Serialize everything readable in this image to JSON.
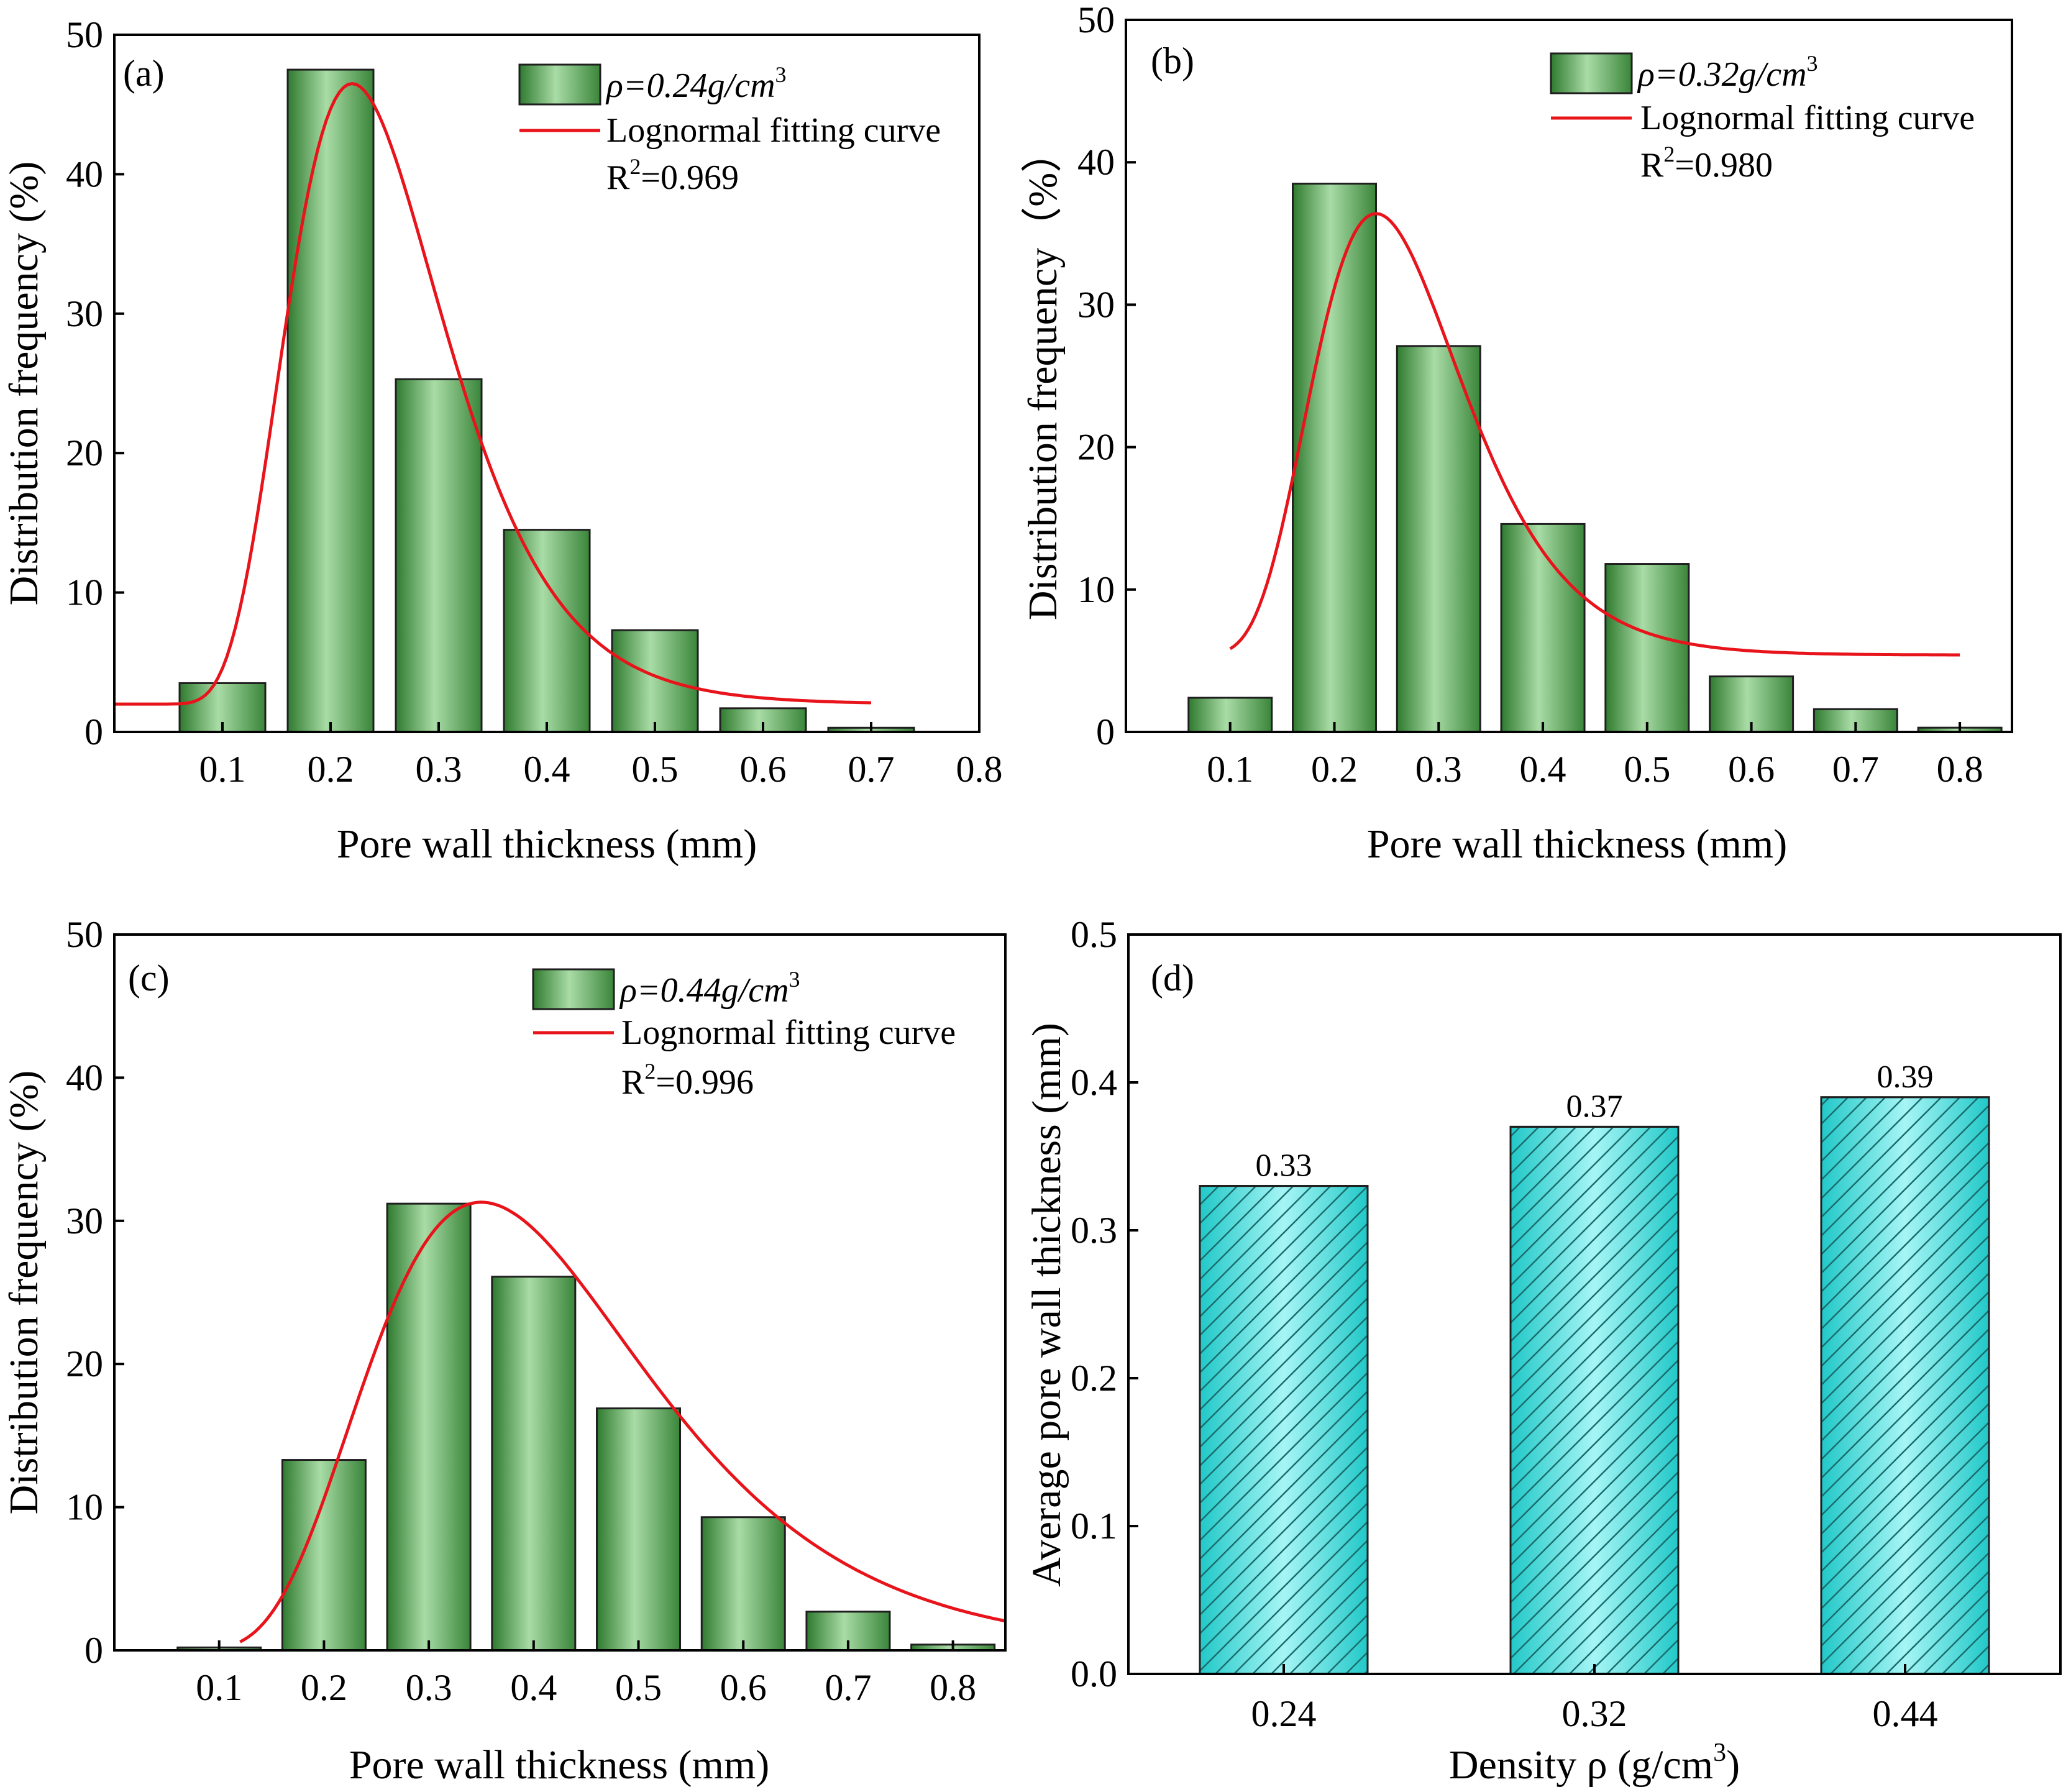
{
  "chart_data": [
    {
      "panel": "(a)",
      "type": "bar",
      "x": [
        0.1,
        0.2,
        0.3,
        0.4,
        0.5,
        0.6,
        0.7
      ],
      "values": [
        3.5,
        47.5,
        25.3,
        14.5,
        7.3,
        1.7,
        0.3
      ],
      "xticks": [
        "0.1",
        "0.2",
        "0.3",
        "0.4",
        "0.5",
        "0.6",
        "0.7",
        "0.8"
      ],
      "yticks": [
        "0",
        "10",
        "20",
        "30",
        "40",
        "50"
      ],
      "xlim": [
        0,
        0.8
      ],
      "ylim": [
        0,
        50
      ],
      "xlabel": "Pore wall thickness (mm)",
      "ylabel": "Distribution frequency (%)",
      "bar_legend": "ρ=0.24g/cm",
      "bar_legend_sup": "3",
      "curve_legend": "Lognormal fitting curve",
      "r2_prefix": "R",
      "r2_sup": "2",
      "r2_value": "=0.969",
      "fit_curve": {
        "y0": 2.0,
        "A": 44.5,
        "xc": 0.22,
        "w": 0.33,
        "x_range": [
          -0.1,
          0.7
        ]
      },
      "bar_color": "#4f9a4f",
      "curve_color": "#e8141b",
      "legend_position": "top-right"
    },
    {
      "panel": "(b)",
      "type": "bar",
      "x": [
        0.1,
        0.2,
        0.3,
        0.4,
        0.5,
        0.6,
        0.7,
        0.8
      ],
      "values": [
        2.4,
        38.5,
        27.1,
        14.6,
        11.8,
        3.9,
        1.6,
        0.3
      ],
      "xticks": [
        "0.1",
        "0.2",
        "0.3",
        "0.4",
        "0.5",
        "0.6",
        "0.7",
        "0.8"
      ],
      "yticks": [
        "0",
        "10",
        "20",
        "30",
        "40",
        "50"
      ],
      "xlim": [
        0,
        0.85
      ],
      "ylim": [
        0,
        50
      ],
      "xlabel": "Pore wall thickness (mm)",
      "ylabel": "Distribution frequency（%）",
      "bar_legend": "ρ=0.32g/cm",
      "bar_legend_sup": "3",
      "curve_legend": "Lognormal fitting curve",
      "r2_prefix": "R",
      "r2_sup": "2",
      "r2_value": "=0.980",
      "fit_curve": {
        "y0": 5.4,
        "A": 31.0,
        "xc": 0.24,
        "w": 0.3,
        "x_range": [
          0.1,
          0.8
        ]
      },
      "bar_color": "#4f9a4f",
      "curve_color": "#e8141b",
      "legend_position": "top-right"
    },
    {
      "panel": "(c)",
      "type": "bar",
      "x": [
        0.1,
        0.2,
        0.3,
        0.4,
        0.5,
        0.6,
        0.7,
        0.8
      ],
      "values": [
        0.2,
        13.3,
        31.2,
        26.1,
        16.9,
        9.3,
        2.7,
        0.4
      ],
      "xticks": [
        "0.1",
        "0.2",
        "0.3",
        "0.4",
        "0.5",
        "0.6",
        "0.7",
        "0.8"
      ],
      "yticks": [
        "0",
        "10",
        "20",
        "30",
        "40",
        "50"
      ],
      "xlim": [
        0,
        0.85
      ],
      "ylim": [
        0,
        50
      ],
      "xlabel": "Pore wall thickness (mm)",
      "ylabel": "Distribution frequency (%)",
      "bar_legend": "ρ=0.44g/cm",
      "bar_legend_sup": "3",
      "curve_legend": "Lognormal fitting curve",
      "r2_prefix": "R",
      "r2_sup": "2",
      "r2_value": "=0.996",
      "fit_curve": {
        "y0": 0.0,
        "A": 31.3,
        "xc": 0.35,
        "w": 0.38,
        "x_range": [
          0.12,
          0.85
        ]
      },
      "bar_color": "#4f9a4f",
      "curve_color": "#e8141b",
      "legend_position": "top-right"
    },
    {
      "panel": "(d)",
      "type": "bar",
      "categories": [
        "0.24",
        "0.32",
        "0.44"
      ],
      "values": [
        0.33,
        0.37,
        0.39
      ],
      "data_labels": [
        "0.33",
        "0.37",
        "0.39"
      ],
      "yticks": [
        "0.0",
        "0.1",
        "0.2",
        "0.3",
        "0.4",
        "0.5"
      ],
      "ylim": [
        0,
        0.5
      ],
      "xlabel": "Density ρ (g/cm",
      "xlabel_sup": "3",
      "xlabel_end": ")",
      "ylabel": "Average pore wall thickness (mm)",
      "bar_color": "#67e3e3",
      "hatch": "diagonal"
    }
  ]
}
